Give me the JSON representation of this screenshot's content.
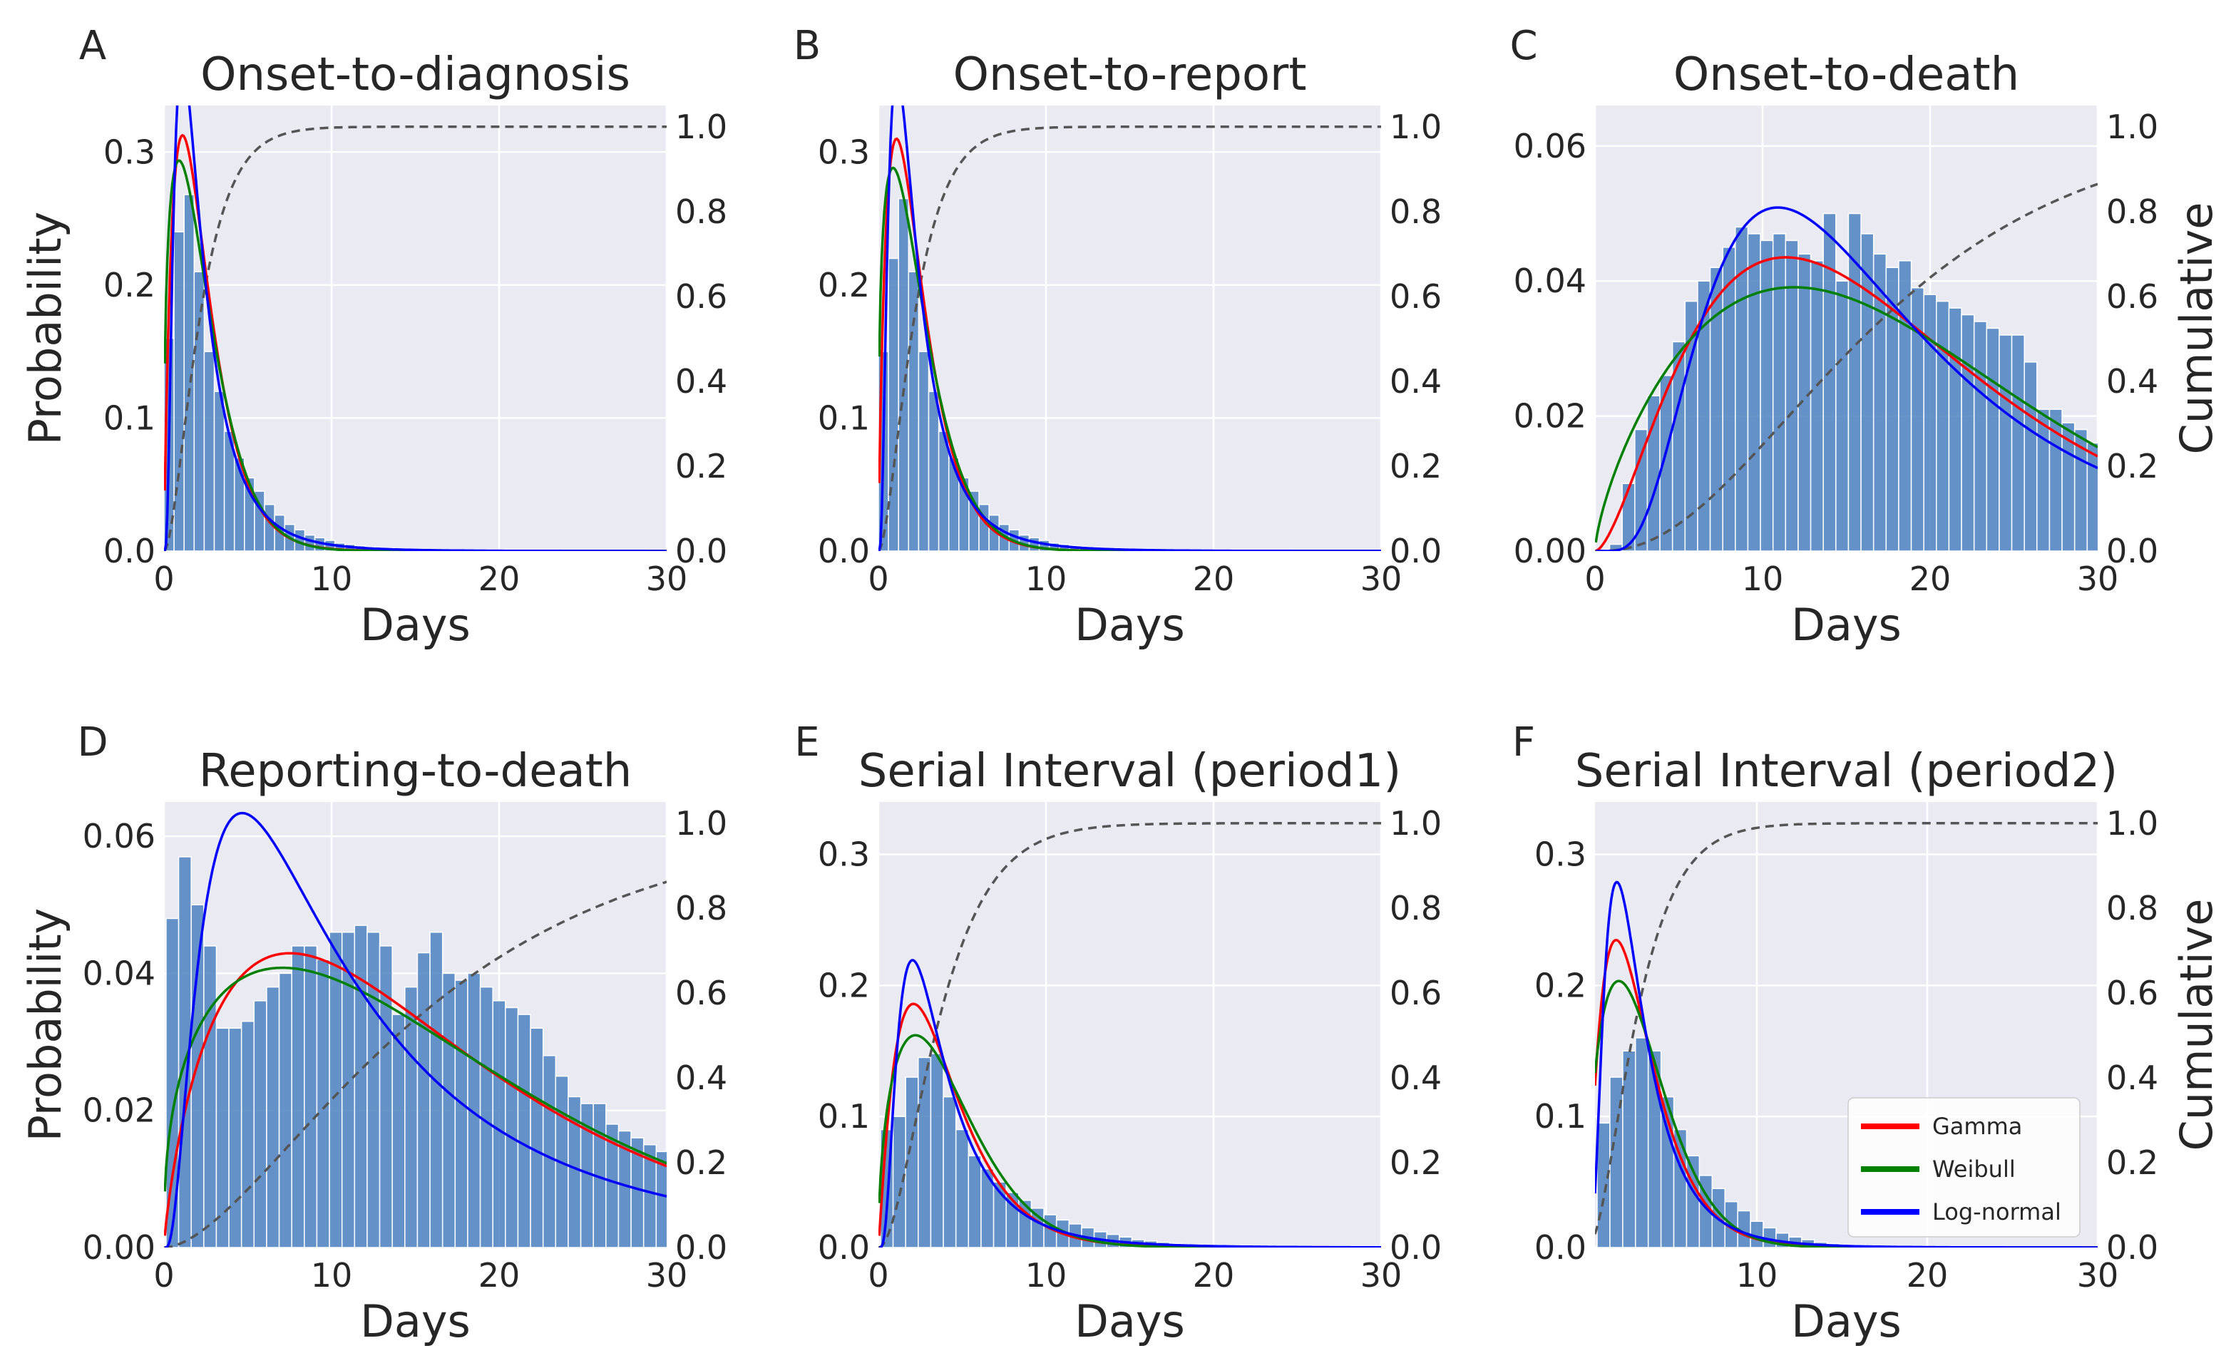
{
  "figure": {
    "colors": {
      "plot_bg": "#eaeaf2",
      "grid": "#ffffff",
      "bar": "#4c81c0",
      "gamma": "#ff0000",
      "weibull": "#008000",
      "lognormal": "#0000ff",
      "cumulative": "#555555"
    },
    "legend": {
      "location": "lower-right of panel F",
      "entries": [
        {
          "label": "Gamma",
          "color": "#ff0000"
        },
        {
          "label": "Weibull",
          "color": "#008000"
        },
        {
          "label": "Log-normal",
          "color": "#0000ff"
        }
      ]
    }
  },
  "chart_data": [
    {
      "panel": "A",
      "type": "bar",
      "title": "Onset-to-diagnosis",
      "xlabel": "Days",
      "ylabel": "Probability",
      "ylabel2": "",
      "xlim": [
        0,
        30
      ],
      "ylim": [
        0,
        0.335
      ],
      "y2lim": [
        0,
        1.05
      ],
      "xticks": [
        "0",
        "10",
        "20",
        "30"
      ],
      "xtick_values": [
        0,
        10,
        20,
        30
      ],
      "yticks": [
        "0.0",
        "0.1",
        "0.2",
        "0.3"
      ],
      "ytick_values": [
        0,
        0.1,
        0.2,
        0.3
      ],
      "y2ticks": [
        "0.0",
        "0.2",
        "0.4",
        "0.6",
        "0.8",
        "1.0"
      ],
      "y2tick_values": [
        0,
        0.2,
        0.4,
        0.6,
        0.8,
        1.0
      ],
      "bar_width": 0.6,
      "bars_x": [
        0.3,
        0.9,
        1.5,
        2.1,
        2.7,
        3.3,
        3.9,
        4.5,
        5.1,
        5.7,
        6.3,
        6.9,
        7.5,
        8.1,
        8.7,
        9.3,
        9.9,
        10.5,
        11.1,
        11.7,
        12.3,
        12.9,
        13.5
      ],
      "bars_y": [
        0.16,
        0.24,
        0.268,
        0.21,
        0.15,
        0.12,
        0.09,
        0.07,
        0.055,
        0.045,
        0.035,
        0.027,
        0.02,
        0.016,
        0.012,
        0.01,
        0.008,
        0.006,
        0.005,
        0.004,
        0.003,
        0.002,
        0.002
      ],
      "curves": {
        "gamma": {
          "type": "gamma",
          "k": 1.9,
          "theta": 1.23
        },
        "weibull": {
          "type": "weibull",
          "k": 1.34,
          "lambda": 2.5
        },
        "lognormal": {
          "type": "lognormal",
          "mu": 0.65,
          "sigma": 0.75
        }
      },
      "cumulative": {
        "type": "gamma",
        "k": 1.9,
        "theta": 1.23
      }
    },
    {
      "panel": "B",
      "type": "bar",
      "title": "Onset-to-report",
      "xlabel": "Days",
      "ylabel": "",
      "ylabel2": "",
      "xlim": [
        0,
        30
      ],
      "ylim": [
        0,
        0.335
      ],
      "y2lim": [
        0,
        1.05
      ],
      "xticks": [
        "0",
        "10",
        "20",
        "30"
      ],
      "xtick_values": [
        0,
        10,
        20,
        30
      ],
      "yticks": [
        "0.0",
        "0.1",
        "0.2",
        "0.3"
      ],
      "ytick_values": [
        0,
        0.1,
        0.2,
        0.3
      ],
      "y2ticks": [
        "0.0",
        "0.2",
        "0.4",
        "0.6",
        "0.8",
        "1.0"
      ],
      "y2tick_values": [
        0,
        0.2,
        0.4,
        0.6,
        0.8,
        1.0
      ],
      "bar_width": 0.6,
      "bars_x": [
        0.3,
        0.9,
        1.5,
        2.1,
        2.7,
        3.3,
        3.9,
        4.5,
        5.1,
        5.7,
        6.3,
        6.9,
        7.5,
        8.1,
        8.7,
        9.3,
        9.9,
        10.5,
        11.1,
        11.7,
        12.3,
        12.9,
        13.5
      ],
      "bars_y": [
        0.15,
        0.22,
        0.265,
        0.21,
        0.15,
        0.12,
        0.09,
        0.07,
        0.055,
        0.045,
        0.035,
        0.027,
        0.02,
        0.016,
        0.012,
        0.01,
        0.008,
        0.006,
        0.005,
        0.004,
        0.003,
        0.002,
        0.002
      ],
      "curves": {
        "gamma": {
          "type": "gamma",
          "k": 1.85,
          "theta": 1.27
        },
        "weibull": {
          "type": "weibull",
          "k": 1.32,
          "lambda": 2.55
        },
        "lognormal": {
          "type": "lognormal",
          "mu": 0.67,
          "sigma": 0.76
        }
      },
      "cumulative": {
        "type": "gamma",
        "k": 1.85,
        "theta": 1.27
      }
    },
    {
      "panel": "C",
      "type": "bar",
      "title": "Onset-to-death",
      "xlabel": "Days",
      "ylabel": "",
      "ylabel2": "Cumulative",
      "xlim": [
        0,
        30
      ],
      "ylim": [
        0,
        0.066
      ],
      "y2lim": [
        0,
        1.05
      ],
      "xticks": [
        "0",
        "10",
        "20",
        "30"
      ],
      "xtick_values": [
        0,
        10,
        20,
        30
      ],
      "yticks": [
        "0.00",
        "0.02",
        "0.04",
        "0.06"
      ],
      "ytick_values": [
        0,
        0.02,
        0.04,
        0.06
      ],
      "y2ticks": [
        "0.0",
        "0.2",
        "0.4",
        "0.6",
        "0.8",
        "1.0"
      ],
      "y2tick_values": [
        0,
        0.2,
        0.4,
        0.6,
        0.8,
        1.0
      ],
      "bar_width": 0.75,
      "bars_x": [
        1.25,
        2.0,
        2.75,
        3.5,
        4.25,
        5.0,
        5.75,
        6.5,
        7.25,
        8.0,
        8.75,
        9.5,
        10.25,
        11.0,
        11.75,
        12.5,
        13.25,
        14.0,
        14.75,
        15.5,
        16.25,
        17.0,
        17.75,
        18.5,
        19.25,
        20.0,
        20.75,
        21.5,
        22.25,
        23.0,
        23.75,
        24.5,
        25.25,
        26.0,
        26.75,
        27.5,
        28.25,
        29.0,
        29.75
      ],
      "bars_y": [
        0.001,
        0.01,
        0.018,
        0.023,
        0.026,
        0.031,
        0.037,
        0.04,
        0.042,
        0.045,
        0.048,
        0.047,
        0.046,
        0.047,
        0.046,
        0.044,
        0.043,
        0.05,
        0.04,
        0.05,
        0.047,
        0.044,
        0.042,
        0.043,
        0.039,
        0.038,
        0.037,
        0.036,
        0.035,
        0.034,
        0.033,
        0.032,
        0.032,
        0.028,
        0.021,
        0.021,
        0.019,
        0.018,
        0.016
      ],
      "curves": {
        "gamma": {
          "type": "gamma",
          "k": 2.7,
          "theta": 6.7
        },
        "weibull": {
          "type": "weibull",
          "k": 1.7,
          "lambda": 20.0
        },
        "lognormal": {
          "type": "lognormal",
          "mu": 2.75,
          "sigma": 0.6
        }
      },
      "cumulative": {
        "type": "gamma",
        "k": 2.7,
        "theta": 6.7
      }
    },
    {
      "panel": "D",
      "type": "bar",
      "title": "Reporting-to-death",
      "xlabel": "Days",
      "ylabel": "Probability",
      "ylabel2": "",
      "xlim": [
        0,
        30
      ],
      "ylim": [
        0,
        0.065
      ],
      "y2lim": [
        0,
        1.05
      ],
      "xticks": [
        "0",
        "10",
        "20",
        "30"
      ],
      "xtick_values": [
        0,
        10,
        20,
        30
      ],
      "yticks": [
        "0.00",
        "0.02",
        "0.04",
        "0.06"
      ],
      "ytick_values": [
        0,
        0.02,
        0.04,
        0.06
      ],
      "y2ticks": [
        "0.0",
        "0.2",
        "0.4",
        "0.6",
        "0.8",
        "1.0"
      ],
      "y2tick_values": [
        0,
        0.2,
        0.4,
        0.6,
        0.8,
        1.0
      ],
      "bar_width": 0.75,
      "bars_x": [
        0.5,
        1.25,
        2.0,
        2.75,
        3.5,
        4.25,
        5.0,
        5.75,
        6.5,
        7.25,
        8.0,
        8.75,
        9.5,
        10.25,
        11.0,
        11.75,
        12.5,
        13.25,
        14.0,
        14.75,
        15.5,
        16.25,
        17.0,
        17.75,
        18.5,
        19.25,
        20.0,
        20.75,
        21.5,
        22.25,
        23.0,
        23.75,
        24.5,
        25.25,
        26.0,
        26.75,
        27.5,
        28.25,
        29.0,
        29.75
      ],
      "bars_y": [
        0.048,
        0.057,
        0.05,
        0.044,
        0.032,
        0.032,
        0.033,
        0.036,
        0.038,
        0.04,
        0.044,
        0.044,
        0.042,
        0.046,
        0.046,
        0.047,
        0.046,
        0.044,
        0.034,
        0.038,
        0.043,
        0.046,
        0.04,
        0.039,
        0.04,
        0.038,
        0.036,
        0.035,
        0.034,
        0.032,
        0.028,
        0.025,
        0.022,
        0.021,
        0.021,
        0.018,
        0.017,
        0.016,
        0.015,
        0.014
      ],
      "curves": {
        "gamma": {
          "type": "gamma",
          "k": 1.8,
          "theta": 9.4
        },
        "weibull": {
          "type": "weibull",
          "k": 1.38,
          "lambda": 18.0
        },
        "lognormal": {
          "type": "lognormal",
          "mu": 2.35,
          "sigma": 0.9
        }
      },
      "cumulative": {
        "type": "gamma",
        "k": 1.8,
        "theta": 9.4
      }
    },
    {
      "panel": "E",
      "type": "bar",
      "title": "Serial Interval (period1)",
      "xlabel": "Days",
      "ylabel": "",
      "ylabel2": "",
      "xlim": [
        0,
        30
      ],
      "ylim": [
        0,
        0.34
      ],
      "y2lim": [
        0,
        1.05
      ],
      "xticks": [
        "0",
        "10",
        "20",
        "30"
      ],
      "xtick_values": [
        0,
        10,
        20,
        30
      ],
      "yticks": [
        "0.0",
        "0.1",
        "0.2",
        "0.3"
      ],
      "ytick_values": [
        0,
        0.1,
        0.2,
        0.3
      ],
      "y2ticks": [
        "0.0",
        "0.2",
        "0.4",
        "0.6",
        "0.8",
        "1.0"
      ],
      "y2tick_values": [
        0,
        0.2,
        0.4,
        0.6,
        0.8,
        1.0
      ],
      "bar_width": 0.75,
      "bars_x": [
        0.5,
        1.25,
        2.0,
        2.75,
        3.5,
        4.25,
        5.0,
        5.75,
        6.5,
        7.25,
        8.0,
        8.75,
        9.5,
        10.25,
        11.0,
        11.75,
        12.5,
        13.25,
        14.0,
        14.75,
        15.5,
        16.25,
        17.0,
        17.75,
        18.5
      ],
      "bars_y": [
        0.09,
        0.1,
        0.13,
        0.145,
        0.148,
        0.115,
        0.09,
        0.07,
        0.06,
        0.05,
        0.042,
        0.036,
        0.03,
        0.025,
        0.021,
        0.018,
        0.015,
        0.012,
        0.01,
        0.008,
        0.006,
        0.005,
        0.004,
        0.003,
        0.002
      ],
      "curves": {
        "gamma": {
          "type": "gamma",
          "k": 2.1,
          "theta": 1.9
        },
        "weibull": {
          "type": "weibull",
          "k": 1.5,
          "lambda": 4.6
        },
        "lognormal": {
          "type": "lognormal",
          "mu": 1.2,
          "sigma": 0.7
        }
      },
      "cumulative": {
        "type": "gamma",
        "k": 2.1,
        "theta": 1.9
      }
    },
    {
      "panel": "F",
      "type": "bar",
      "title": "Serial Interval (period2)",
      "xlabel": "Days",
      "ylabel": "",
      "ylabel2": "Cumulative",
      "xlim": [
        0.5,
        30
      ],
      "ylim": [
        0,
        0.34
      ],
      "y2lim": [
        0,
        1.05
      ],
      "xticks": [
        "10",
        "20",
        "30"
      ],
      "xtick_values": [
        10,
        20,
        30
      ],
      "yticks": [
        "0.0",
        "0.1",
        "0.2",
        "0.3"
      ],
      "ytick_values": [
        0,
        0.1,
        0.2,
        0.3
      ],
      "y2ticks": [
        "0.0",
        "0.2",
        "0.4",
        "0.6",
        "0.8",
        "1.0"
      ],
      "y2tick_values": [
        0,
        0.2,
        0.4,
        0.6,
        0.8,
        1.0
      ],
      "bar_width": 0.75,
      "bars_x": [
        1.0,
        1.75,
        2.5,
        3.25,
        4.0,
        4.75,
        5.5,
        6.25,
        7.0,
        7.75,
        8.5,
        9.25,
        10.0,
        10.75,
        11.5,
        12.25,
        13.0,
        13.75,
        14.5,
        15.25,
        16.0
      ],
      "bars_y": [
        0.095,
        0.13,
        0.15,
        0.16,
        0.15,
        0.115,
        0.09,
        0.07,
        0.055,
        0.045,
        0.035,
        0.028,
        0.02,
        0.015,
        0.011,
        0.008,
        0.006,
        0.004,
        0.003,
        0.002,
        0.002
      ],
      "curves": {
        "gamma": {
          "type": "gamma",
          "k": 2.2,
          "theta": 1.45
        },
        "weibull": {
          "type": "weibull",
          "k": 1.55,
          "lambda": 3.7
        },
        "lognormal": {
          "type": "lognormal",
          "mu": 1.0,
          "sigma": 0.65
        }
      },
      "cumulative": {
        "type": "gamma",
        "k": 2.2,
        "theta": 1.45
      }
    }
  ]
}
